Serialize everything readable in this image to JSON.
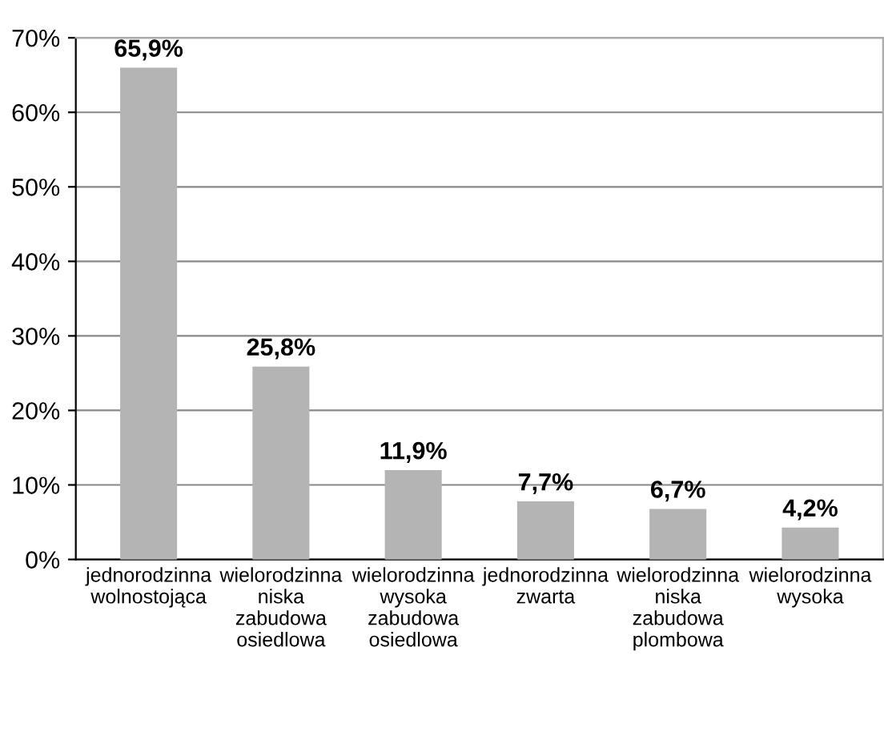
{
  "chart_data": {
    "type": "bar",
    "categories": [
      "jednorodzinna wolnostojąca",
      "wielorodzinna niska zabudowa osiedlowa",
      "wielorodzinna wysoka zabudowa osiedlowa",
      "jednorodzinna zwarta",
      "wielorodzinna niska zabudowa plombowa",
      "wielorodzinna wysoka"
    ],
    "values": [
      65.9,
      25.8,
      11.9,
      7.7,
      6.7,
      4.2
    ],
    "value_labels": [
      "65,9%",
      "25,8%",
      "11,9%",
      "7,7%",
      "6,7%",
      "4,2%"
    ],
    "color": "#b4b4b4",
    "ylim": [
      0,
      70
    ],
    "yticks": [
      {
        "value": 0,
        "label": "0%"
      },
      {
        "value": 10,
        "label": "10%"
      },
      {
        "value": 20,
        "label": "20%"
      },
      {
        "value": 30,
        "label": "30%"
      },
      {
        "value": 40,
        "label": "40%"
      },
      {
        "value": 50,
        "label": "50%"
      },
      {
        "value": 60,
        "label": "60%"
      },
      {
        "value": 70,
        "label": "70%"
      }
    ],
    "grid": "y",
    "legend": false
  }
}
